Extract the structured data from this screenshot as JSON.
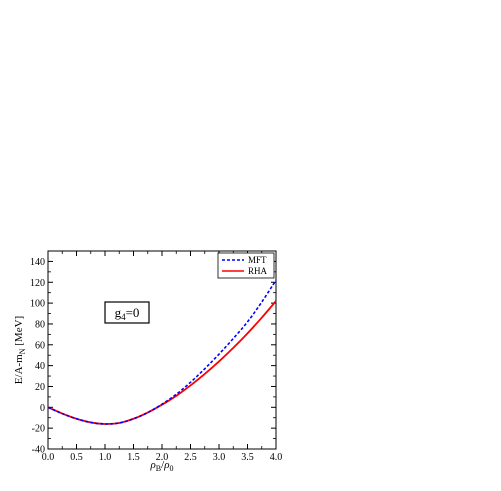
{
  "chart_data": {
    "type": "line",
    "xlabel": "ρB/ρ0",
    "ylabel": "E/A-mN [MeV]",
    "xlim": [
      0,
      4
    ],
    "ylim": [
      -40,
      150
    ],
    "xticks": [
      "0.0",
      "0.5",
      "1.0",
      "1.5",
      "2.0",
      "2.5",
      "3.0",
      "3.5",
      "4.0"
    ],
    "yticks": [
      "-40",
      "-20",
      "0",
      "20",
      "40",
      "60",
      "80",
      "100",
      "120",
      "140"
    ],
    "grid": false,
    "legend_position": "top-right",
    "annotation": "g4=0",
    "series": [
      {
        "name": "MFT",
        "color": "#0000ff",
        "style": "dashed",
        "x": [
          0,
          0.25,
          0.5,
          0.75,
          1.0,
          1.25,
          1.5,
          1.75,
          2.0,
          2.25,
          2.5,
          2.75,
          3.0,
          3.25,
          3.5,
          3.75,
          4.0
        ],
        "y": [
          0,
          -6,
          -11,
          -14.5,
          -16,
          -15,
          -11,
          -5,
          3,
          12.5,
          24,
          37,
          51,
          66,
          82,
          101,
          122
        ]
      },
      {
        "name": "RHA",
        "color": "#ff0000",
        "style": "solid",
        "x": [
          0,
          0.25,
          0.5,
          0.75,
          1.0,
          1.25,
          1.5,
          1.75,
          2.0,
          2.25,
          2.5,
          2.75,
          3.0,
          3.25,
          3.5,
          3.75,
          4.0
        ],
        "y": [
          0,
          -6,
          -11,
          -14.5,
          -16,
          -15,
          -11,
          -5,
          2.5,
          11,
          21,
          32,
          44,
          57,
          71,
          86,
          102
        ]
      }
    ]
  }
}
